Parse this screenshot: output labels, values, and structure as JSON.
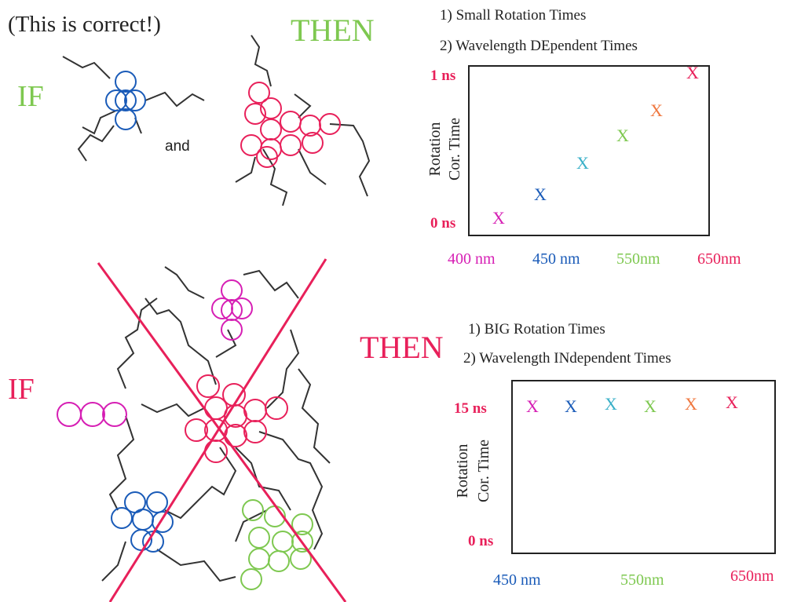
{
  "top": {
    "note": "(This is correct!)",
    "if_label": "IF",
    "and_label": "and",
    "then_label": "THEN",
    "items": [
      "1) Small Rotation Times",
      "2) Wavelength DEpendent Times"
    ],
    "plot": {
      "y_title": [
        "Rotation",
        "Cor. Time"
      ],
      "y_labels": [
        "1 ns",
        "0 ns"
      ],
      "x_labels": [
        "400 nm",
        "450 nm",
        "550nm",
        "650nm"
      ],
      "markers": [
        {
          "label": "X",
          "color": "#d61fb4"
        },
        {
          "label": "X",
          "color": "#1a5bb8"
        },
        {
          "label": "X",
          "color": "#3ab0c8"
        },
        {
          "label": "X",
          "color": "#7ec850"
        },
        {
          "label": "X",
          "color": "#f07840"
        },
        {
          "label": "X",
          "color": "#e8205a"
        }
      ]
    }
  },
  "bottom": {
    "if_label": "IF",
    "then_label": "THEN",
    "items": [
      "1) BIG Rotation Times",
      "2) Wavelength INdependent Times"
    ],
    "plot": {
      "y_title": [
        "Rotation",
        "Cor. Time"
      ],
      "y_labels": [
        "15 ns",
        "0 ns"
      ],
      "x_labels": [
        "450 nm",
        "550nm",
        "650nm"
      ],
      "markers": [
        {
          "label": "X",
          "color": "#d61fb4"
        },
        {
          "label": "X",
          "color": "#1a5bb8"
        },
        {
          "label": "X",
          "color": "#3ab0c8"
        },
        {
          "label": "X",
          "color": "#7ec850"
        },
        {
          "label": "X",
          "color": "#f07840"
        },
        {
          "label": "X",
          "color": "#e8205a"
        }
      ]
    }
  }
}
